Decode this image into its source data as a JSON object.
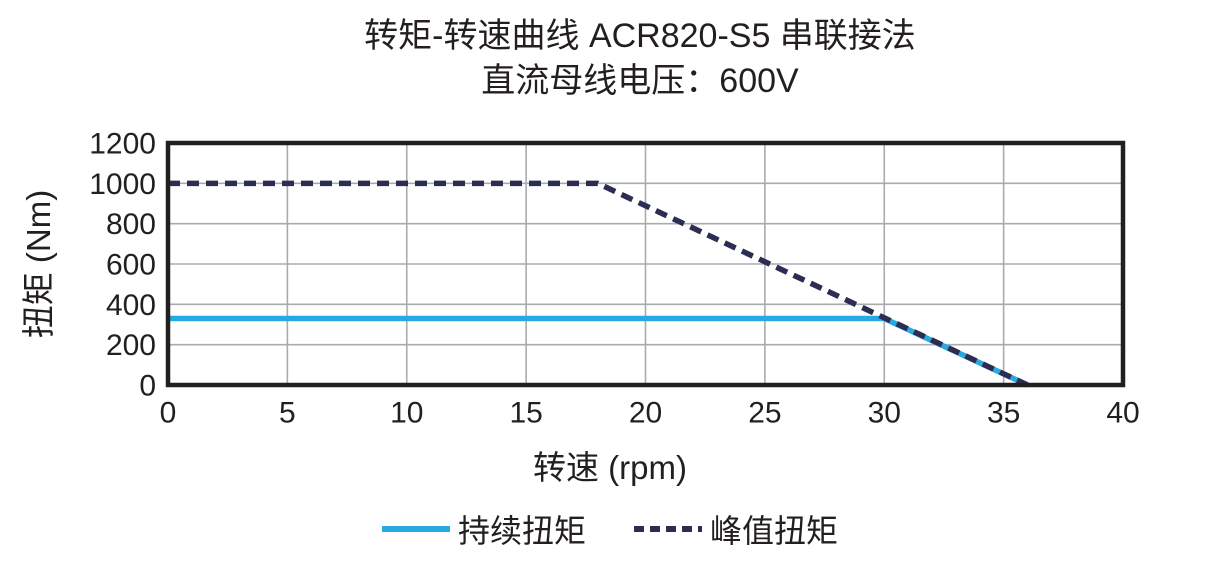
{
  "title": {
    "line1": "转矩-转速曲线 ACR820-S5 串联接法",
    "line2": "直流母线电压：600V"
  },
  "axes": {
    "x_label": "转速 (rpm)",
    "y_label": "扭矩 (Nm)"
  },
  "colors": {
    "text": "#231f20",
    "grid": "#a9abae",
    "border": "#231f20",
    "continuous": "#29a9e1",
    "peak": "#2b2e52",
    "background": "#ffffff"
  },
  "chart_data": {
    "type": "line",
    "title": "转矩-转速曲线 ACR820-S5 串联接法",
    "subtitle": "直流母线电压：600V",
    "xlabel": "转速 (rpm)",
    "ylabel": "扭矩 (Nm)",
    "xlim": [
      0,
      40
    ],
    "ylim": [
      0,
      1200
    ],
    "x_ticks": [
      0,
      5,
      10,
      15,
      20,
      25,
      30,
      35,
      40
    ],
    "y_ticks": [
      0,
      200,
      400,
      600,
      800,
      1000,
      1200
    ],
    "grid": true,
    "legend_position": "bottom",
    "series": [
      {
        "name": "持续扭矩",
        "style": "solid",
        "color": "#29a9e1",
        "points": [
          [
            0,
            330
          ],
          [
            30,
            330
          ],
          [
            36,
            0
          ]
        ]
      },
      {
        "name": "峰值扭矩",
        "style": "dashed",
        "color": "#2b2e52",
        "points": [
          [
            0,
            1000
          ],
          [
            18,
            1000
          ],
          [
            36,
            0
          ]
        ]
      }
    ]
  }
}
